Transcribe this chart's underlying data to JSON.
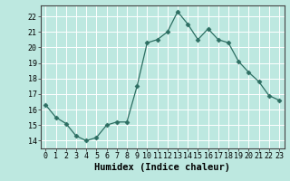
{
  "x": [
    0,
    1,
    2,
    3,
    4,
    5,
    6,
    7,
    8,
    9,
    10,
    11,
    12,
    13,
    14,
    15,
    16,
    17,
    18,
    19,
    20,
    21,
    22,
    23
  ],
  "y": [
    16.3,
    15.5,
    15.1,
    14.3,
    14.0,
    14.2,
    15.0,
    15.2,
    15.2,
    17.5,
    20.3,
    20.5,
    21.0,
    22.3,
    21.5,
    20.5,
    21.2,
    20.5,
    20.3,
    19.1,
    18.4,
    17.8,
    16.9,
    16.6
  ],
  "line_color": "#2d6e62",
  "marker": "D",
  "marker_size": 2.5,
  "bg_color": "#bde8e0",
  "grid_color": "#ffffff",
  "xlabel": "Humidex (Indice chaleur)",
  "xlim": [
    -0.5,
    23.5
  ],
  "ylim": [
    13.5,
    22.7
  ],
  "yticks": [
    14,
    15,
    16,
    17,
    18,
    19,
    20,
    21,
    22
  ],
  "xticks": [
    0,
    1,
    2,
    3,
    4,
    5,
    6,
    7,
    8,
    9,
    10,
    11,
    12,
    13,
    14,
    15,
    16,
    17,
    18,
    19,
    20,
    21,
    22,
    23
  ],
  "tick_label_fontsize": 6.0,
  "xlabel_fontsize": 7.5
}
